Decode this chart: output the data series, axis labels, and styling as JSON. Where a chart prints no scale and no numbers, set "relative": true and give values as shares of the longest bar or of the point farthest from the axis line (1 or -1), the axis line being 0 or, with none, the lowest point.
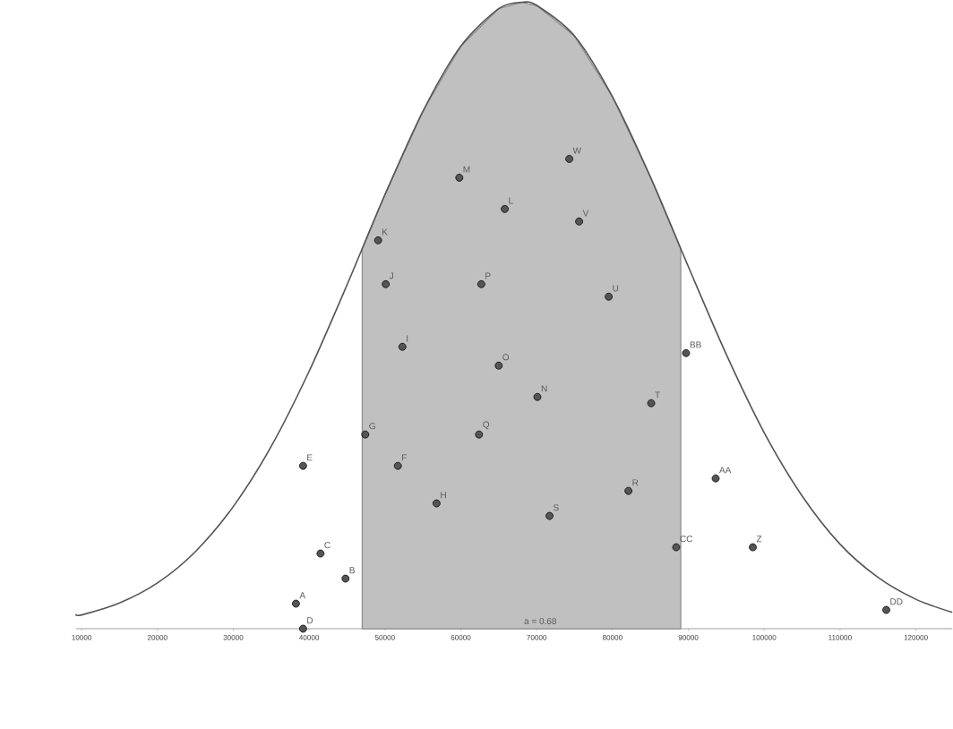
{
  "chart_data": {
    "type": "scatter",
    "relative": true,
    "tick_labels": "x",
    "xlim": [
      9240,
      124800
    ],
    "xticks": [
      10000,
      20000,
      30000,
      40000,
      50000,
      60000,
      70000,
      80000,
      90000,
      100000,
      110000,
      120000
    ],
    "series": [
      {
        "type": "area",
        "marker": "none",
        "color": "#c0c0c0",
        "x": [
          47000,
          50000,
          55000,
          60000,
          65000,
          68000,
          70000,
          75000,
          80000,
          85000,
          89000
        ],
        "values": [
          0.607,
          0.693,
          0.826,
          0.93,
          0.99,
          1,
          0.995,
          0.946,
          0.849,
          0.721,
          0.607
        ]
      },
      {
        "type": "line",
        "marker": "none",
        "color": "#555555",
        "x": [
          9240,
          10000,
          15000,
          20000,
          25000,
          30000,
          35000,
          40000,
          45000,
          50000,
          55000,
          60000,
          65000,
          68000,
          70000,
          75000,
          80000,
          85000,
          90000,
          95000,
          100000,
          105000,
          110000,
          115000,
          120000,
          124800
        ],
        "values": [
          0.023,
          0.022,
          0.041,
          0.073,
          0.123,
          0.195,
          0.291,
          0.411,
          0.549,
          0.693,
          0.826,
          0.93,
          0.99,
          1,
          0.995,
          0.946,
          0.849,
          0.721,
          0.578,
          0.438,
          0.313,
          0.212,
          0.135,
          0.082,
          0.047,
          0.026
        ]
      },
      {
        "marker": "circle",
        "color": "#555555",
        "x": [
          38260,
          44800,
          41500,
          39200,
          39200,
          51700,
          47400,
          56800,
          52300,
          50100,
          49100,
          65800,
          59800,
          70100,
          65000,
          62700,
          62400,
          82100,
          71700,
          85100,
          79500,
          75600,
          74300,
          93600,
          89700,
          88400,
          98500,
          116100
        ],
        "values": [
          0.04,
          0.08,
          0.12,
          0.0,
          0.26,
          0.26,
          0.31,
          0.2,
          0.45,
          0.55,
          0.62,
          0.67,
          0.72,
          0.37,
          0.42,
          0.55,
          0.31,
          0.22,
          0.18,
          0.36,
          0.53,
          0.65,
          0.75,
          0.24,
          0.44,
          0.13,
          0.13,
          0.03
        ]
      }
    ],
    "annotations": [
      {
        "text": "A",
        "x": 38260,
        "y": 0.04
      },
      {
        "text": "B",
        "x": 44800,
        "y": 0.08
      },
      {
        "text": "C",
        "x": 41500,
        "y": 0.12
      },
      {
        "text": "D",
        "x": 39200,
        "y": 0.0
      },
      {
        "text": "E",
        "x": 39200,
        "y": 0.26
      },
      {
        "text": "F",
        "x": 51700,
        "y": 0.26
      },
      {
        "text": "G",
        "x": 47400,
        "y": 0.31
      },
      {
        "text": "H",
        "x": 56800,
        "y": 0.2
      },
      {
        "text": "I",
        "x": 52300,
        "y": 0.45
      },
      {
        "text": "J",
        "x": 50100,
        "y": 0.55
      },
      {
        "text": "K",
        "x": 49100,
        "y": 0.62
      },
      {
        "text": "L",
        "x": 65800,
        "y": 0.67
      },
      {
        "text": "M",
        "x": 59800,
        "y": 0.72
      },
      {
        "text": "N",
        "x": 70100,
        "y": 0.37
      },
      {
        "text": "O",
        "x": 65000,
        "y": 0.42
      },
      {
        "text": "P",
        "x": 62700,
        "y": 0.55
      },
      {
        "text": "Q",
        "x": 62400,
        "y": 0.31
      },
      {
        "text": "R",
        "x": 82100,
        "y": 0.22
      },
      {
        "text": "S",
        "x": 71700,
        "y": 0.18
      },
      {
        "text": "T",
        "x": 85100,
        "y": 0.36
      },
      {
        "text": "U",
        "x": 79500,
        "y": 0.53
      },
      {
        "text": "V",
        "x": 75600,
        "y": 0.65
      },
      {
        "text": "W",
        "x": 74300,
        "y": 0.75
      },
      {
        "text": "AA",
        "x": 93600,
        "y": 0.24
      },
      {
        "text": "BB",
        "x": 89700,
        "y": 0.44
      },
      {
        "text": "CC",
        "x": 88400,
        "y": 0.13
      },
      {
        "text": "Z",
        "x": 98500,
        "y": 0.13
      },
      {
        "text": "DD",
        "x": 116100,
        "y": 0.03
      },
      "a = 0.68"
    ]
  }
}
